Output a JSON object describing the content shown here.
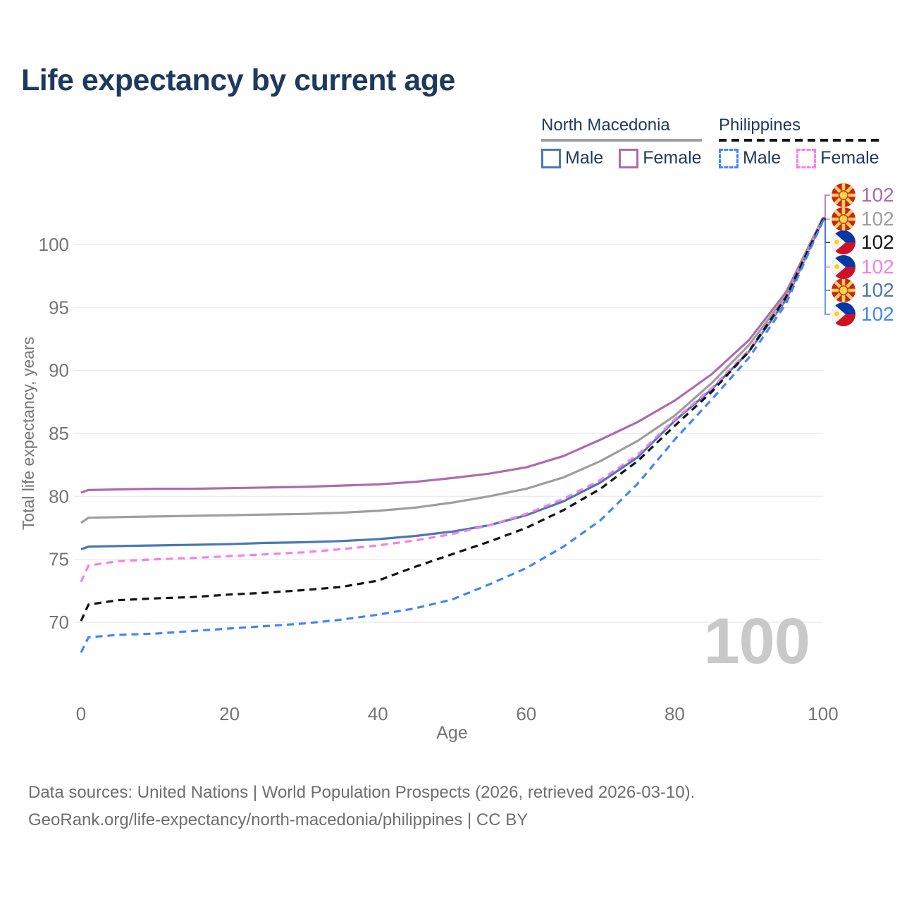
{
  "title": "Life expectancy by current age",
  "legend": {
    "groups": [
      {
        "country": "North Macedonia",
        "line_style": "solid",
        "items": [
          {
            "label": "Male",
            "color": "#4a78b5"
          },
          {
            "label": "Female",
            "color": "#ae6bae"
          }
        ]
      },
      {
        "country": "Philippines",
        "line_style": "dashed",
        "items": [
          {
            "label": "Male",
            "color": "#4187f5"
          },
          {
            "label": "Female",
            "color": "#fb7de9"
          }
        ]
      }
    ]
  },
  "watermark_age": "100",
  "footer": {
    "line1": "Data sources: United Nations | World Population Prospects (2026, retrieved 2026-03-10).",
    "line2": "GeoRank.org/life-expectancy/north-macedonia/philippines | CC BY"
  },
  "colors": {
    "nm_female": "#ae6bae",
    "nm_total": "#9e9e9e",
    "nm_male": "#4a78b5",
    "ph_female": "#fb7de9",
    "ph_total": "#141414",
    "ph_male": "#4187f5",
    "grid": "#ececec",
    "axis_text": "#757575",
    "heading_text": "#1d3a5e",
    "footer_text": "#6e6e6e",
    "watermark": "#c9c9c9"
  },
  "chart_data": {
    "type": "line",
    "title": "Life expectancy by current age",
    "xlabel": "Age",
    "ylabel": "Total life expectancy, years",
    "x_ticks": [
      0,
      20,
      40,
      60,
      80,
      100
    ],
    "y_ticks": [
      70,
      75,
      80,
      85,
      90,
      95,
      100
    ],
    "xlim": [
      0,
      100
    ],
    "ylim": [
      66.5,
      103.5
    ],
    "grid": "horizontal only",
    "legend_position": "top-right",
    "x": [
      0,
      1,
      5,
      10,
      15,
      20,
      25,
      30,
      35,
      40,
      45,
      50,
      55,
      60,
      65,
      70,
      75,
      80,
      85,
      90,
      95,
      100
    ],
    "series": [
      {
        "id": "nm_female",
        "name": "North Macedonia Female",
        "color": "#ae6bae",
        "dashed": false,
        "flag": "mk",
        "end_label": "102",
        "end_label_row": 0,
        "values": [
          80.3,
          80.5,
          80.55,
          80.6,
          80.6,
          80.65,
          80.7,
          80.75,
          80.85,
          80.95,
          81.15,
          81.45,
          81.8,
          82.3,
          83.2,
          84.5,
          85.9,
          87.6,
          89.7,
          92.4,
          96.2,
          102.15
        ]
      },
      {
        "id": "nm_total",
        "name": "North Macedonia Total",
        "color": "#9e9e9e",
        "dashed": false,
        "flag": "mk",
        "end_label": "102",
        "end_label_row": 1,
        "values": [
          77.9,
          78.3,
          78.35,
          78.4,
          78.45,
          78.5,
          78.55,
          78.6,
          78.7,
          78.85,
          79.1,
          79.5,
          80.0,
          80.6,
          81.5,
          82.8,
          84.4,
          86.4,
          89.0,
          92.0,
          95.9,
          102.1
        ]
      },
      {
        "id": "nm_male",
        "name": "North Macedonia Male",
        "color": "#4a78b5",
        "dashed": false,
        "flag": "mk",
        "end_label": "102",
        "end_label_row": 4,
        "values": [
          75.8,
          76.0,
          76.05,
          76.1,
          76.15,
          76.2,
          76.3,
          76.35,
          76.45,
          76.6,
          76.85,
          77.2,
          77.7,
          78.5,
          79.6,
          81.1,
          83.1,
          86.0,
          88.5,
          91.5,
          95.6,
          101.95
        ]
      },
      {
        "id": "ph_female",
        "name": "Philippines Female",
        "color": "#fb7de9",
        "dashed": true,
        "flag": "ph",
        "end_label": "102",
        "end_label_row": 3,
        "values": [
          73.2,
          74.5,
          74.85,
          75.0,
          75.1,
          75.25,
          75.4,
          75.55,
          75.8,
          76.1,
          76.5,
          77.0,
          77.7,
          78.6,
          79.8,
          81.3,
          83.3,
          86.1,
          88.6,
          91.6,
          95.7,
          102.0
        ]
      },
      {
        "id": "ph_total",
        "name": "Philippines Total",
        "color": "#141414",
        "dashed": true,
        "flag": "ph",
        "end_label": "102",
        "end_label_row": 2,
        "values": [
          70.1,
          71.4,
          71.75,
          71.9,
          72.0,
          72.2,
          72.35,
          72.55,
          72.8,
          73.3,
          74.4,
          75.4,
          76.4,
          77.5,
          78.9,
          80.6,
          82.8,
          85.6,
          88.3,
          91.5,
          95.8,
          102.05
        ]
      },
      {
        "id": "ph_male",
        "name": "Philippines Male",
        "color": "#4187f5",
        "dashed": true,
        "flag": "ph",
        "end_label": "102",
        "end_label_row": 5,
        "values": [
          67.6,
          68.8,
          69.0,
          69.1,
          69.3,
          69.5,
          69.7,
          69.9,
          70.2,
          70.6,
          71.1,
          71.8,
          73.0,
          74.3,
          76.0,
          78.1,
          81.0,
          84.5,
          87.7,
          91.0,
          95.3,
          101.9
        ]
      }
    ]
  }
}
